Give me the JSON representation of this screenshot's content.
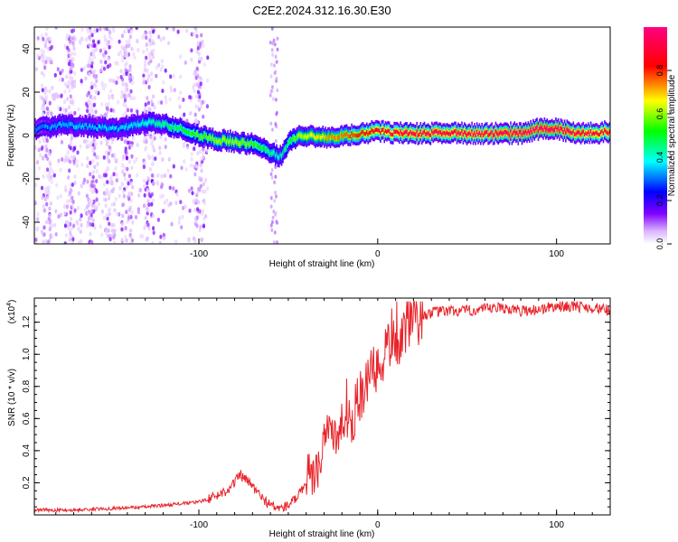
{
  "figure": {
    "title": "C2E2.2024.312.16.30.E30"
  },
  "chart_data": [
    {
      "type": "heatmap",
      "xlabel": "Height of straight line (km)",
      "ylabel": "Frequency (Hz)",
      "xlim": [
        -192,
        130
      ],
      "ylim": [
        -50,
        50
      ],
      "x_ticks": [
        -100,
        0,
        100
      ],
      "y_ticks": [
        -40,
        -20,
        0,
        20,
        40
      ],
      "colorbar": {
        "label": "Normalized spectral amplitude",
        "range": [
          0,
          1
        ],
        "ticks": [
          0.0,
          0.2,
          0.4,
          0.6,
          0.8
        ],
        "colormap": [
          "#ffffff",
          "#d9b3ff",
          "#8000ff",
          "#0000ff",
          "#00ffff",
          "#00ff00",
          "#ffff00",
          "#ff0000",
          "#ff0080"
        ]
      },
      "ridge": {
        "x": [
          -192,
          -175,
          -160,
          -145,
          -130,
          -120,
          -110,
          -100,
          -90,
          -80,
          -70,
          -60,
          -55,
          -50,
          -45,
          -40,
          -30,
          -20,
          -10,
          0,
          10,
          20,
          40,
          60,
          80,
          90,
          100,
          110,
          120,
          130
        ],
        "frequency": [
          3,
          5,
          4,
          3,
          6,
          5,
          3,
          0,
          -2,
          -3,
          -4,
          -8,
          -10,
          -3,
          0,
          0,
          -1,
          0,
          1,
          2,
          1,
          1,
          1,
          1,
          1,
          3,
          3,
          1,
          1,
          2
        ],
        "amplitude": [
          0.3,
          0.35,
          0.35,
          0.35,
          0.4,
          0.45,
          0.5,
          0.55,
          0.6,
          0.6,
          0.55,
          0.45,
          0.4,
          0.5,
          0.6,
          0.65,
          0.7,
          0.75,
          0.8,
          0.85,
          0.9,
          0.92,
          0.92,
          0.92,
          0.95,
          0.98,
          0.95,
          0.92,
          0.9,
          0.9
        ]
      }
    },
    {
      "type": "line",
      "xlabel": "Height of straight line (km)",
      "ylabel": "SNR (10 * v/v)",
      "y_scale_label": "(x10",
      "y_scale_exp": "4",
      "xlim": [
        -192,
        130
      ],
      "ylim": [
        0,
        1.35
      ],
      "x_ticks": [
        -100,
        0,
        100
      ],
      "y_ticks": [
        0.2,
        0.4,
        0.6,
        0.8,
        1.0,
        1.2
      ],
      "color": "#e8242a",
      "series": [
        {
          "x": [
            -192,
            -170,
            -150,
            -130,
            -120,
            -110,
            -100,
            -90,
            -85,
            -80,
            -77,
            -74,
            -70,
            -66,
            -62,
            -58,
            -54,
            -50,
            -46,
            -42,
            -38,
            -34,
            -32,
            -30,
            -28,
            -26,
            -24,
            -22,
            -20,
            -18,
            -16,
            -14,
            -12,
            -10,
            -8,
            -6,
            -4,
            -2,
            0,
            2,
            4,
            6,
            8,
            10,
            12,
            14,
            16,
            18,
            20,
            22,
            25,
            30,
            40,
            50,
            60,
            70,
            80,
            90,
            100,
            110,
            120,
            130
          ],
          "y": [
            0.03,
            0.03,
            0.04,
            0.05,
            0.06,
            0.07,
            0.08,
            0.12,
            0.15,
            0.2,
            0.25,
            0.22,
            0.18,
            0.12,
            0.08,
            0.05,
            0.04,
            0.06,
            0.1,
            0.15,
            0.2,
            0.28,
            0.35,
            0.5,
            0.58,
            0.55,
            0.5,
            0.42,
            0.56,
            0.62,
            0.62,
            0.55,
            0.7,
            0.72,
            0.75,
            0.82,
            0.86,
            0.9,
            0.86,
            0.95,
            1.0,
            1.06,
            1.12,
            1.1,
            1.1,
            1.15,
            1.18,
            1.2,
            1.22,
            1.24,
            1.24,
            1.26,
            1.27,
            1.27,
            1.28,
            1.29,
            1.27,
            1.28,
            1.3,
            1.3,
            1.29,
            1.27
          ]
        }
      ]
    }
  ]
}
